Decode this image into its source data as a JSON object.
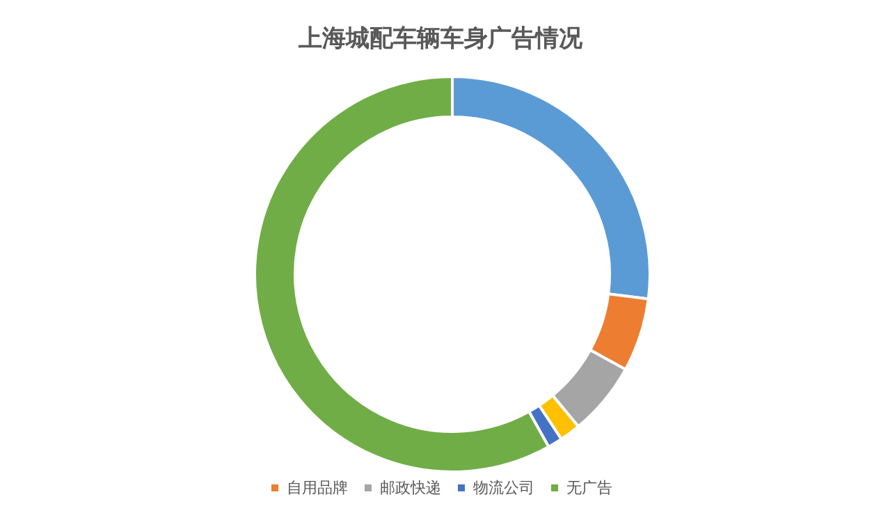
{
  "chart_data": {
    "type": "donut",
    "title": "上海城配车辆车身广告情况",
    "categories": [
      null,
      "自用品牌",
      "邮政快递",
      null,
      "物流公司",
      "无广告"
    ],
    "values": [
      27,
      6,
      6,
      1.7,
      1.2,
      58.1
    ],
    "colors": [
      "#5b9bd5",
      "#ed7d31",
      "#a5a5a5",
      "#ffc000",
      "#4472c4",
      "#70ad47"
    ],
    "legend": "bottom"
  }
}
